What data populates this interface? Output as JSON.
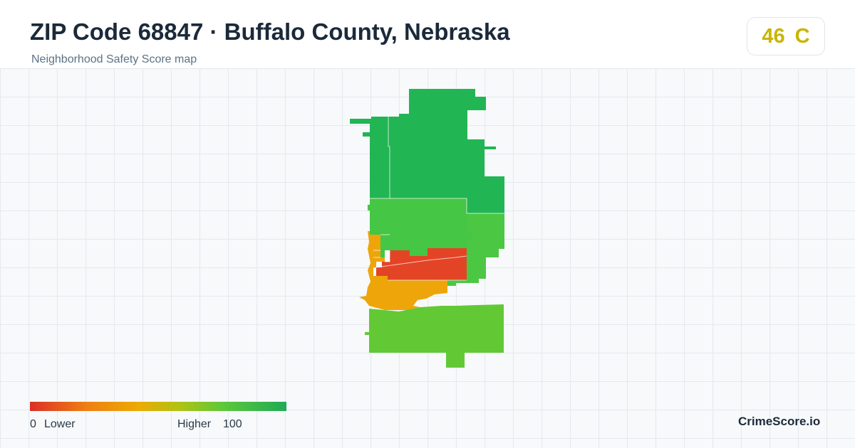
{
  "header": {
    "title": "ZIP Code 68847 · Buffalo County, Nebraska",
    "subtitle": "Neighborhood Safety Score map"
  },
  "score": {
    "value": "46",
    "grade": "C",
    "color": "#c9b400"
  },
  "legend": {
    "min_label": "0",
    "low_label": "Lower",
    "high_label": "Higher",
    "max_label": "100",
    "colors": [
      "#dc2f27",
      "#ee7f12",
      "#ecaa05",
      "#b2c212",
      "#5ec83a",
      "#1faa55"
    ]
  },
  "brand": "CrimeScore.io",
  "map": {
    "regions": [
      {
        "name": "north-tract",
        "score_band": "highest",
        "color": "#22b554"
      },
      {
        "name": "north-central-tract",
        "score_band": "high",
        "color": "#45c645"
      },
      {
        "name": "east-tract",
        "score_band": "high",
        "color": "#4cc744"
      },
      {
        "name": "central-tract",
        "score_band": "lowest",
        "color": "#e34426"
      },
      {
        "name": "southwest-tract",
        "score_band": "medium-low",
        "color": "#eea50a"
      },
      {
        "name": "south-tract",
        "score_band": "medium-high",
        "color": "#62c935"
      }
    ]
  }
}
